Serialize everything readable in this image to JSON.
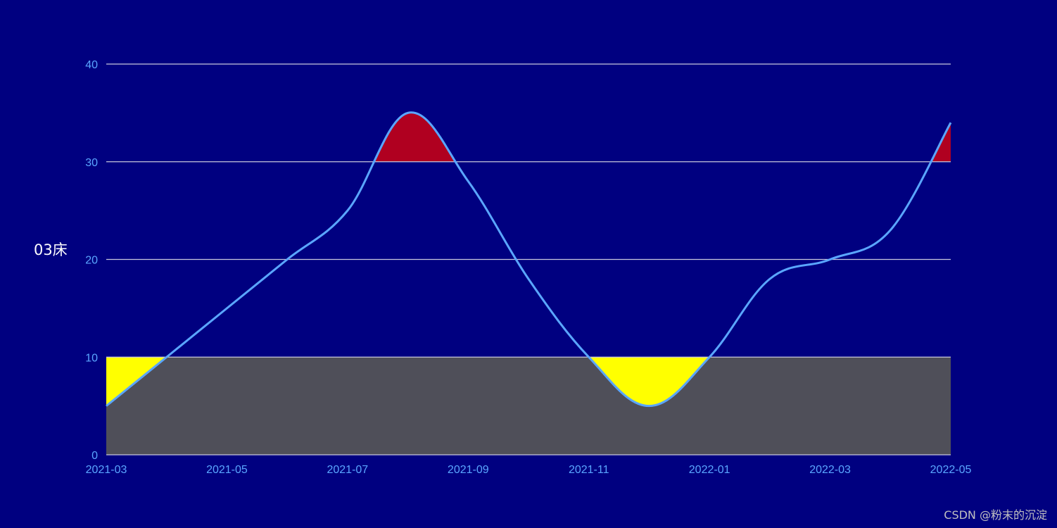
{
  "chart_data": {
    "type": "line",
    "ylabel": "03床",
    "x": [
      "2021-03",
      "2021-04",
      "2021-05",
      "2021-06",
      "2021-07",
      "2021-08",
      "2021-09",
      "2021-10",
      "2021-11",
      "2021-12",
      "2022-01",
      "2022-02",
      "2022-03",
      "2022-04",
      "2022-05"
    ],
    "x_tick_labels": [
      "2021-03",
      "2021-05",
      "2021-07",
      "2021-09",
      "2021-11",
      "2022-01",
      "2022-03",
      "2022-05"
    ],
    "series": [
      {
        "values": [
          5,
          10,
          15,
          20,
          25,
          35,
          28,
          18,
          10,
          5,
          10,
          18,
          20,
          23,
          34
        ],
        "color": "#5aa6ff"
      }
    ],
    "ylim": [
      0,
      40
    ],
    "yticks": [
      0,
      10,
      20,
      30,
      40
    ],
    "grid": true,
    "bands": {
      "low_threshold": 10,
      "high_threshold": 30,
      "low_band_color": "#4f4f59",
      "below_low_fill": "#ffff00",
      "above_high_fill": "#b00020"
    },
    "background": "#000080"
  },
  "watermark": "CSDN @粉末的沉淀"
}
